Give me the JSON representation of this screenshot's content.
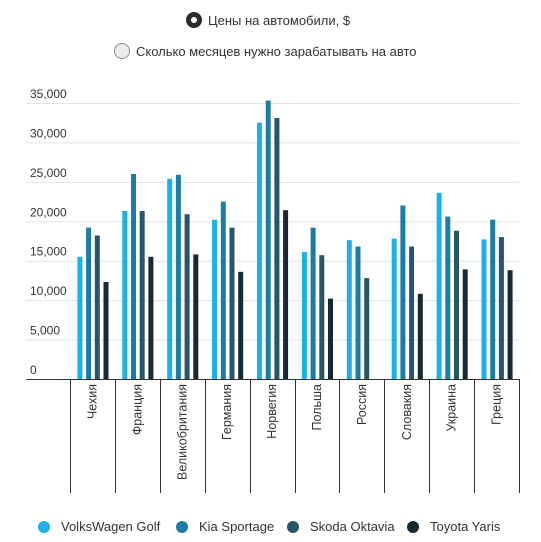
{
  "toggle": {
    "options": [
      {
        "label": "Цены на автомобили, $",
        "selected": true
      },
      {
        "label": "Сколько месяцев нужно зарабатывать на авто",
        "selected": false
      }
    ]
  },
  "chart_data": {
    "type": "bar",
    "title": "",
    "xlabel": "",
    "ylabel": "",
    "ylim": [
      0,
      35000
    ],
    "yticks": [
      0,
      5000,
      10000,
      15000,
      20000,
      25000,
      30000,
      35000
    ],
    "ytick_labels": [
      "0",
      "5,000",
      "10,000",
      "15,000",
      "20,000",
      "25,000",
      "30,000",
      "35,000"
    ],
    "grid": true,
    "legend_position": "bottom",
    "categories": [
      "Чехия",
      "Франция",
      "Великобритания",
      "Германия",
      "Норвегия",
      "Польша",
      "Россия",
      "Словакия",
      "Украина",
      "Греция"
    ],
    "series": [
      {
        "name": "VolksWagen Golf",
        "color": "#1ab0e8",
        "values": [
          15500,
          21300,
          25400,
          20200,
          32500,
          16100,
          17600,
          17800,
          23600,
          17700
        ]
      },
      {
        "name": "Kia Sportage",
        "color": "#1b7da6",
        "values": [
          19200,
          26000,
          25900,
          22500,
          35300,
          19200,
          16800,
          22000,
          20600,
          20200
        ]
      },
      {
        "name": "Skoda Oktavia",
        "color": "#2a5569",
        "values": [
          18200,
          21300,
          20900,
          19200,
          33100,
          15700,
          12800,
          16800,
          18800,
          18000
        ]
      },
      {
        "name": "Toyota Yaris",
        "color": "#162a33",
        "values": [
          12300,
          15500,
          15800,
          13600,
          21400,
          10200,
          null,
          10800,
          13900,
          13800
        ]
      }
    ]
  }
}
